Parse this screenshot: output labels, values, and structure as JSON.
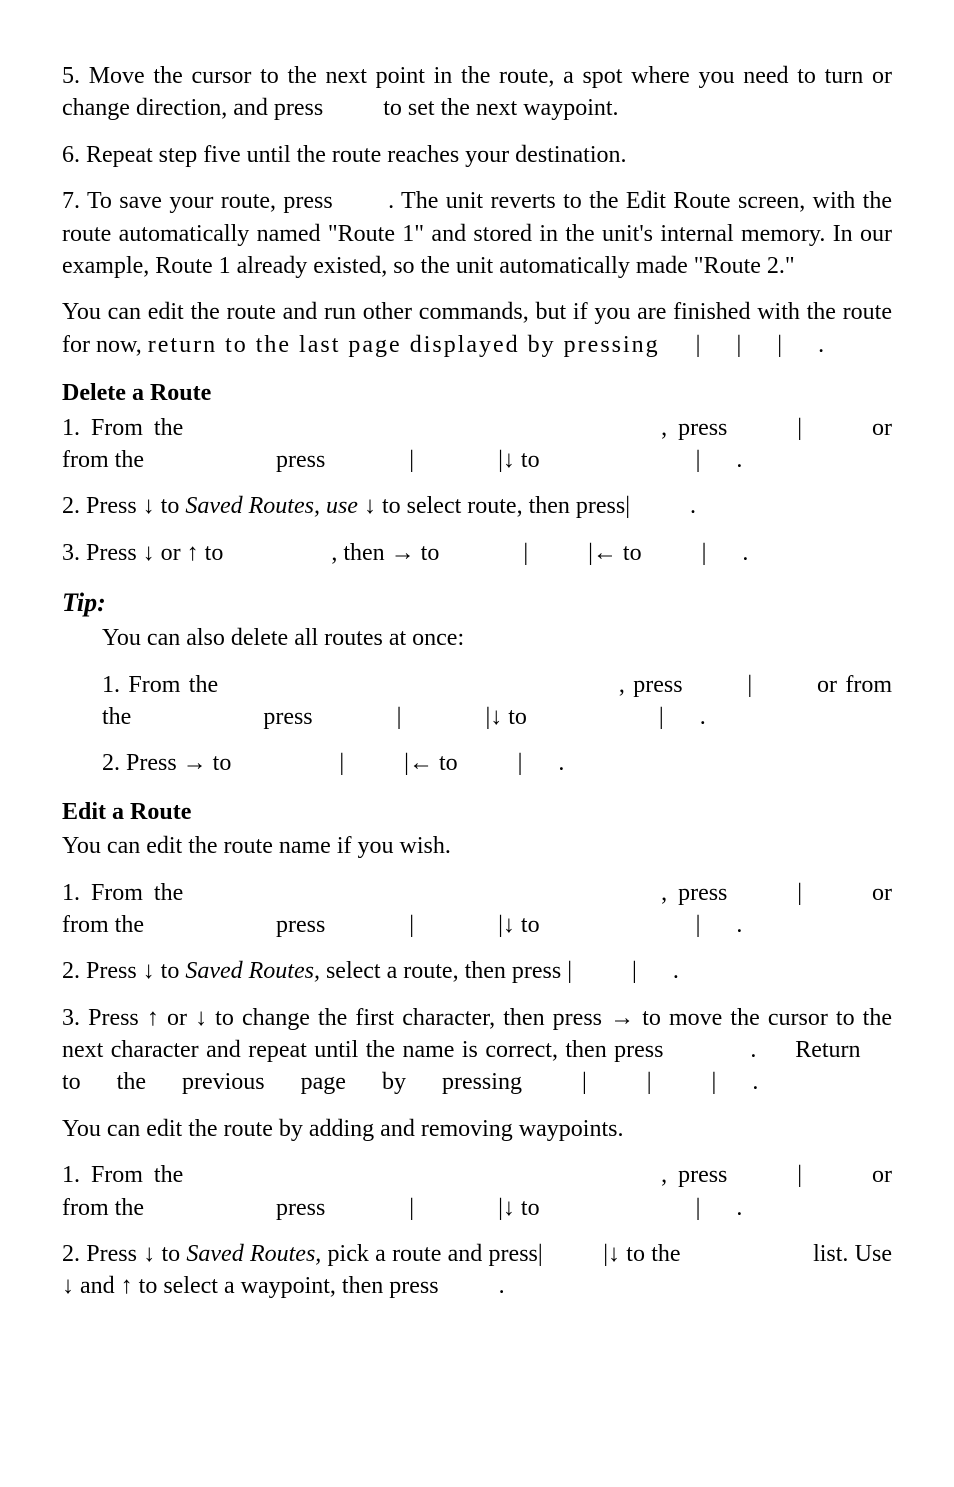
{
  "para_step5": "5. Move the cursor to the next point in the route, a spot where you need to turn or change direction, and press    to set the next waypoint.",
  "para_step6": "6. Repeat step five until the route reaches your destination.",
  "para_step7": "7. To save your route, press   . The unit reverts to the Edit Route screen, with the route automatically named \"Route 1\" and stored in the unit's internal memory. In our example, Route 1 already existed, so the unit automatically made \"Route 2.\"",
  "para_edit_run_a": "You can edit the route and run other commands, but if you are finished with the route for now, ",
  "para_edit_run_b": "return to the last page displayed by pressing",
  "para_edit_run_c": "   |   |   |   .",
  "h_delete": "Delete a Route",
  "del_step1": "1. From the                     , press    |    or from the       press     |     |↓ to        |   .",
  "del_step2_a": "2. Press ↓ to ",
  "del_step2_b": "Saved Routes, use",
  "del_step2_c": " ↓ to select route, then press|    .",
  "del_step3": "3. Press ↓ or ↑ to      , then → to     |    |← to    |   .",
  "h_tip": "Tip:",
  "tip_intro": "You can also delete all routes at once:",
  "tip_step1": "1. From the                  , press    |    or from the       press     |     |↓ to       |   .",
  "tip_step2": "2. Press → to      |    |← to    |   .",
  "h_edit": "Edit a Route",
  "edit_intro": "You can edit the route name if you wish.",
  "edit_step1": "1. From the                     , press    |    or from the       press     |     |↓ to        |   .",
  "edit_step2_a": "2. Press ↓ to ",
  "edit_step2_b": "Saved Routes,",
  "edit_step2_c": " select a route, then press |    |   .",
  "edit_step3": "3. Press ↑ or ↓ to change the first character, then press → to move the cursor to the next character and repeat until the name is correct, then press     .   Return   to   the   previous   page   by   pressing    |    |    |   .",
  "wp_intro": "You can edit the route by adding and removing waypoints.",
  "wp_step1": "1. From the                     , press    |    or from the       press     |     |↓ to        |   .",
  "wp_step2_a": "2. Press ↓ to ",
  "wp_step2_b": "Saved Routes,",
  "wp_step2_c": " pick a route and press|    |↓ to the       list. Use ↓ and ↑ to select a waypoint, then press    ."
}
